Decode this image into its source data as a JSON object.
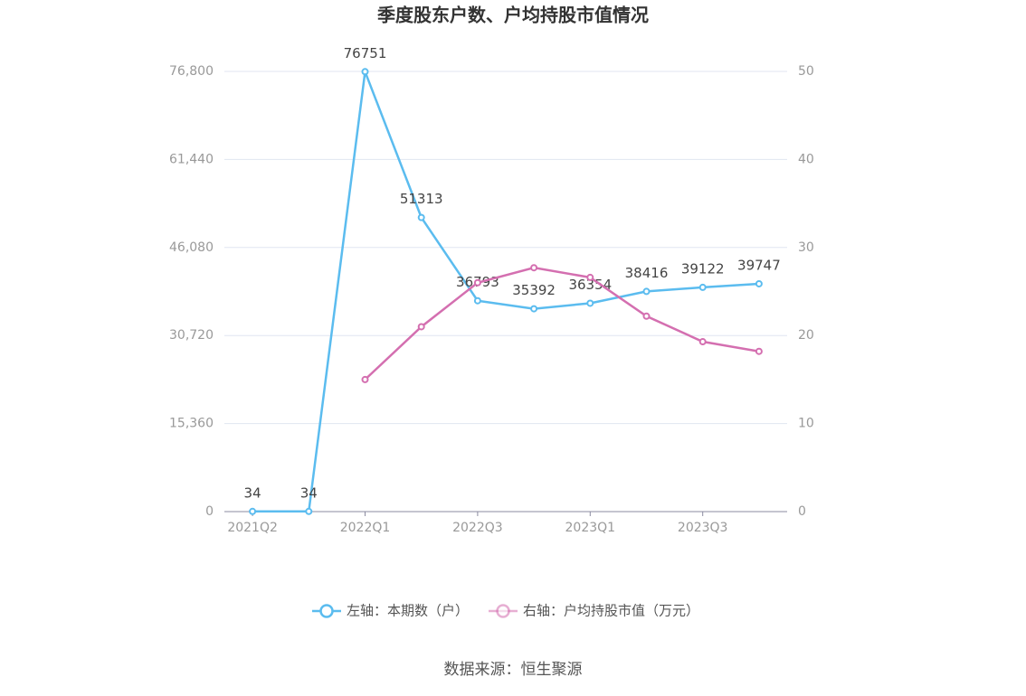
{
  "chart_data": {
    "type": "line",
    "title": "季度股东户数、户均持股市值情况",
    "categories": [
      "2021Q2",
      null,
      "2022Q1",
      null,
      "2022Q3",
      null,
      "2023Q1",
      null,
      "2023Q3",
      null
    ],
    "series": [
      {
        "name": "左轴：本期数（户）",
        "color": "#5bbcef",
        "values": [
          34,
          34,
          76751,
          51313,
          36793,
          35392,
          36354,
          38416,
          39122,
          39747
        ]
      },
      {
        "name": "右轴：户均持股市值（万元）",
        "color": "#d46fb0",
        "axis": "y2",
        "values": [
          null,
          null,
          15.0,
          21.0,
          26.0,
          27.7,
          26.6,
          22.2,
          19.3,
          18.2
        ]
      }
    ],
    "ylim": [
      0,
      76800
    ],
    "yticks": [
      0,
      {
        "value": 15360,
        "label": "15,360"
      },
      {
        "value": 30720,
        "label": "30,720"
      },
      {
        "value": 46080,
        "label": "46,080"
      },
      {
        "value": 61440,
        "label": "61,440"
      },
      {
        "value": 76800,
        "label": "76,800"
      }
    ],
    "y2lim": [
      0,
      50
    ],
    "y2ticks": [
      0,
      10,
      20,
      30,
      40,
      50
    ],
    "grid": true,
    "legend": "bottom",
    "source": "数据来源：恒生聚源"
  }
}
